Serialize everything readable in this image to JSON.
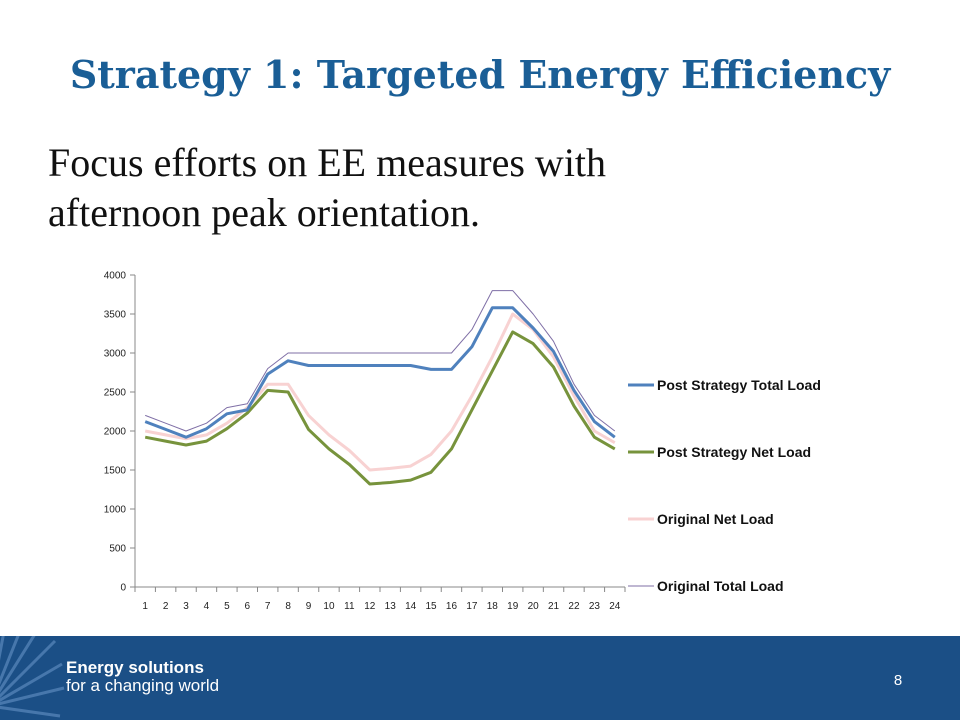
{
  "slide": {
    "title": "Strategy 1: Targeted Energy Efficiency",
    "body_line1": "Focus efforts on EE measures with",
    "body_line2": "afternoon peak orientation.",
    "page_number": "8"
  },
  "footer": {
    "brand_line1": "Energy solutions",
    "brand_line2": "for a changing world",
    "background_color": "#1b4f86"
  },
  "chart_data": {
    "type": "line",
    "title": "",
    "xlabel": "",
    "ylabel": "",
    "x": [
      1,
      2,
      3,
      4,
      5,
      6,
      7,
      8,
      9,
      10,
      11,
      12,
      13,
      14,
      15,
      16,
      17,
      18,
      19,
      20,
      21,
      22,
      23,
      24
    ],
    "ylim": [
      0,
      4000
    ],
    "yticks": [
      0,
      500,
      1000,
      1500,
      2000,
      2500,
      3000,
      3500,
      4000
    ],
    "grid": false,
    "legend_position": "right",
    "series": [
      {
        "name": "Post Strategy Total Load",
        "color": "#4f81bd",
        "width": 3,
        "values": [
          2120,
          2020,
          1920,
          2030,
          2220,
          2270,
          2730,
          2900,
          2840,
          2840,
          2840,
          2840,
          2840,
          2840,
          2790,
          2790,
          3080,
          3580,
          3580,
          3320,
          3020,
          2520,
          2120,
          1920
        ]
      },
      {
        "name": "Post Strategy Net Load",
        "color": "#77933c",
        "width": 3,
        "values": [
          1920,
          1870,
          1820,
          1870,
          2030,
          2230,
          2520,
          2500,
          2020,
          1770,
          1570,
          1320,
          1340,
          1370,
          1470,
          1770,
          2270,
          2770,
          3270,
          3120,
          2820,
          2320,
          1920,
          1770
        ]
      },
      {
        "name": "Original Net Load",
        "color": "#f8d2d2",
        "width": 3,
        "values": [
          2000,
          1950,
          1900,
          1950,
          2100,
          2300,
          2600,
          2600,
          2200,
          1950,
          1750,
          1500,
          1520,
          1550,
          1700,
          2000,
          2450,
          2950,
          3500,
          3300,
          2950,
          2450,
          2000,
          1850
        ]
      },
      {
        "name": "Original Total Load",
        "color": "#7f6fa6",
        "width": 1,
        "values": [
          2200,
          2100,
          2000,
          2100,
          2300,
          2350,
          2800,
          3000,
          3000,
          3000,
          3000,
          3000,
          3000,
          3000,
          3000,
          3000,
          3300,
          3800,
          3800,
          3500,
          3150,
          2600,
          2200,
          2000
        ]
      }
    ]
  }
}
